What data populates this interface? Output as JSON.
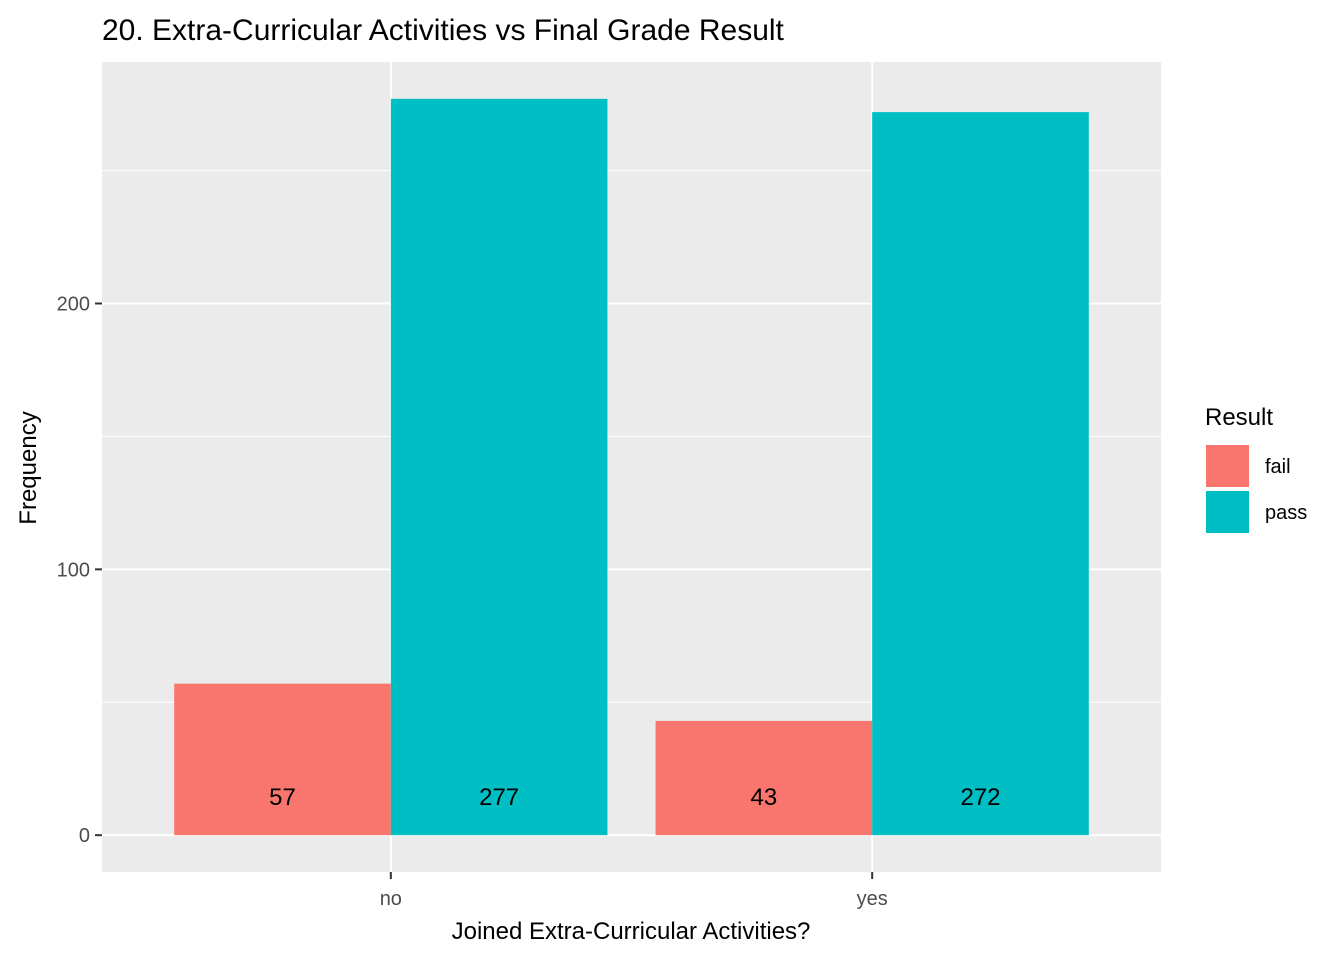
{
  "chart_data": {
    "type": "bar",
    "title": "20. Extra-Curricular Activities vs Final Grade Result",
    "xlabel": "Joined Extra-Curricular Activities?",
    "ylabel": "Frequency",
    "categories": [
      "no",
      "yes"
    ],
    "series": [
      {
        "name": "fail",
        "values": [
          57,
          43
        ],
        "color": "#F8766D"
      },
      {
        "name": "pass",
        "values": [
          277,
          272
        ],
        "color": "#00BFC4"
      }
    ],
    "data_labels": [
      [
        "57",
        "43"
      ],
      [
        "277",
        "272"
      ]
    ],
    "yticks": [
      0,
      100,
      200
    ],
    "ytick_labels": [
      "0",
      "100",
      "200"
    ],
    "ylim": [
      -13.85,
      290.85
    ],
    "grid": true,
    "legend": {
      "title": "Result",
      "position": "right",
      "items": [
        "fail",
        "pass"
      ]
    },
    "panel_background": "#EBEBEB",
    "grid_color": "#FFFFFF"
  }
}
